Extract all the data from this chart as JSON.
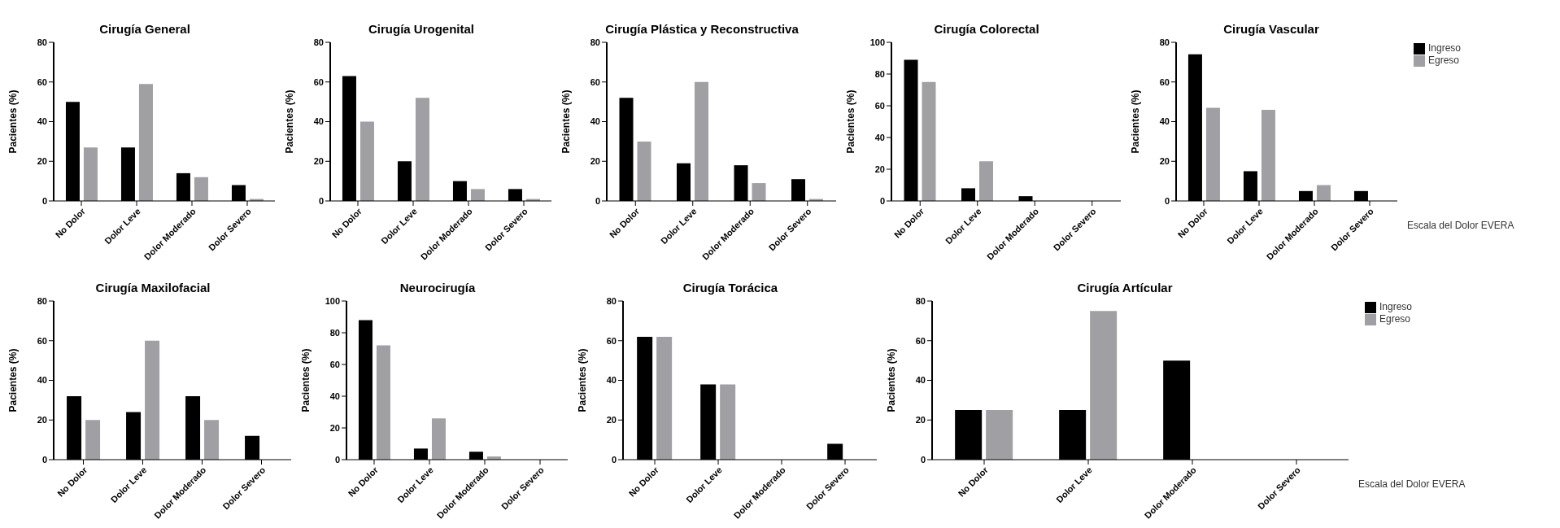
{
  "chart_data": [
    {
      "type": "bar",
      "title": "Cirugía General",
      "ylabel": "Pacientes (%)",
      "categories": [
        "No Dolor",
        "Dolor Leve",
        "Dolor Moderado",
        "Dolor Severo"
      ],
      "ylim": [
        0,
        80
      ],
      "yticks": [
        0,
        20,
        40,
        60,
        80
      ],
      "grid": false,
      "legend": false,
      "series": [
        {
          "color": "#000000",
          "values": [
            50,
            27,
            14,
            8
          ]
        },
        {
          "color": "#a0a0a4",
          "values": [
            27,
            59,
            12,
            1
          ]
        }
      ]
    },
    {
      "type": "bar",
      "title": "Cirugía Urogenital",
      "ylabel": "Pacientes (%)",
      "categories": [
        "No Dolor",
        "Dolor Leve",
        "Dolor Moderado",
        "Dolor Severo"
      ],
      "ylim": [
        0,
        80
      ],
      "yticks": [
        0,
        20,
        40,
        60,
        80
      ],
      "grid": false,
      "legend": false,
      "series": [
        {
          "color": "#000000",
          "values": [
            63,
            20,
            10,
            6
          ]
        },
        {
          "color": "#a0a0a4",
          "values": [
            40,
            52,
            6,
            1
          ]
        }
      ]
    },
    {
      "type": "bar",
      "title": "Cirugía Plástica y Reconstructiva",
      "ylabel": "Pacientes (%)",
      "categories": [
        "No Dolor",
        "Dolor Leve",
        "Dolor Moderado",
        "Dolor Severo"
      ],
      "ylim": [
        0,
        80
      ],
      "yticks": [
        0,
        20,
        40,
        60,
        80
      ],
      "grid": false,
      "legend": false,
      "series": [
        {
          "color": "#000000",
          "values": [
            52,
            19,
            18,
            11
          ]
        },
        {
          "color": "#a0a0a4",
          "values": [
            30,
            60,
            9,
            1
          ]
        }
      ]
    },
    {
      "type": "bar",
      "title": "Cirugía Colorectal",
      "ylabel": "Pacientes (%)",
      "categories": [
        "No Dolor",
        "Dolor Leve",
        "Dolor Moderado",
        "Dolor Severo"
      ],
      "ylim": [
        0,
        100
      ],
      "yticks": [
        0,
        20,
        40,
        60,
        80,
        100
      ],
      "grid": false,
      "legend": false,
      "series": [
        {
          "color": "#000000",
          "values": [
            89,
            8,
            3,
            0
          ]
        },
        {
          "color": "#a0a0a4",
          "values": [
            75,
            25,
            0,
            0
          ]
        }
      ]
    },
    {
      "type": "bar",
      "title": "Cirugía Vascular",
      "ylabel": "Pacientes (%)",
      "xlabel": "Escala del Dolor EVERA",
      "categories": [
        "No Dolor",
        "Dolor Leve",
        "Dolor Moderado",
        "Dolor Severo"
      ],
      "ylim": [
        0,
        80
      ],
      "yticks": [
        0,
        20,
        40,
        60,
        80
      ],
      "grid": false,
      "legend": "top right",
      "series": [
        {
          "name": "Ingreso",
          "color": "#000000",
          "values": [
            74,
            15,
            5,
            5
          ]
        },
        {
          "name": "Egreso",
          "color": "#a0a0a4",
          "values": [
            47,
            46,
            8,
            0
          ]
        }
      ]
    },
    {
      "type": "bar",
      "title": "Cirugía Maxilofacial",
      "ylabel": "Pacientes (%)",
      "categories": [
        "No Dolor",
        "Dolor Leve",
        "Dolor Moderado",
        "Dolor Severo"
      ],
      "ylim": [
        0,
        80
      ],
      "yticks": [
        0,
        20,
        40,
        60,
        80
      ],
      "grid": false,
      "legend": false,
      "series": [
        {
          "color": "#000000",
          "values": [
            32,
            24,
            32,
            12
          ]
        },
        {
          "color": "#a0a0a4",
          "values": [
            20,
            60,
            20,
            0
          ]
        }
      ]
    },
    {
      "type": "bar",
      "title": "Neurocirugía",
      "ylabel": "Pacientes (%)",
      "categories": [
        "No Dolor",
        "Dolor Leve",
        "Dolor Moderado",
        "Dolor Severo"
      ],
      "ylim": [
        0,
        100
      ],
      "yticks": [
        0,
        20,
        40,
        60,
        80,
        100
      ],
      "grid": false,
      "legend": false,
      "series": [
        {
          "color": "#000000",
          "values": [
            88,
            7,
            5,
            0
          ]
        },
        {
          "color": "#a0a0a4",
          "values": [
            72,
            26,
            2,
            0
          ]
        }
      ]
    },
    {
      "type": "bar",
      "title": "Cirugía Torácica",
      "ylabel": "Pacientes (%)",
      "categories": [
        "No Dolor",
        "Dolor Leve",
        "Dolor Moderado",
        "Dolor Severo"
      ],
      "ylim": [
        0,
        80
      ],
      "yticks": [
        0,
        20,
        40,
        60,
        80
      ],
      "grid": false,
      "legend": false,
      "series": [
        {
          "color": "#000000",
          "values": [
            62,
            38,
            0,
            8
          ]
        },
        {
          "color": "#a0a0a4",
          "values": [
            62,
            38,
            0,
            0
          ]
        }
      ]
    },
    {
      "type": "bar",
      "title": "Cirugía Artícular",
      "ylabel": "Pacientes (%)",
      "xlabel": "Escala del Dolor EVERA",
      "categories": [
        "No Dolor",
        "Dolor Leve",
        "Dolor Moderado",
        "Dolor Severo"
      ],
      "ylim": [
        0,
        80
      ],
      "yticks": [
        0,
        20,
        40,
        60,
        80
      ],
      "grid": false,
      "legend": "top right",
      "series": [
        {
          "name": "Ingreso",
          "color": "#000000",
          "values": [
            25,
            25,
            50,
            0
          ]
        },
        {
          "name": "Egreso",
          "color": "#a0a0a4",
          "values": [
            25,
            75,
            0,
            0
          ]
        }
      ]
    }
  ]
}
